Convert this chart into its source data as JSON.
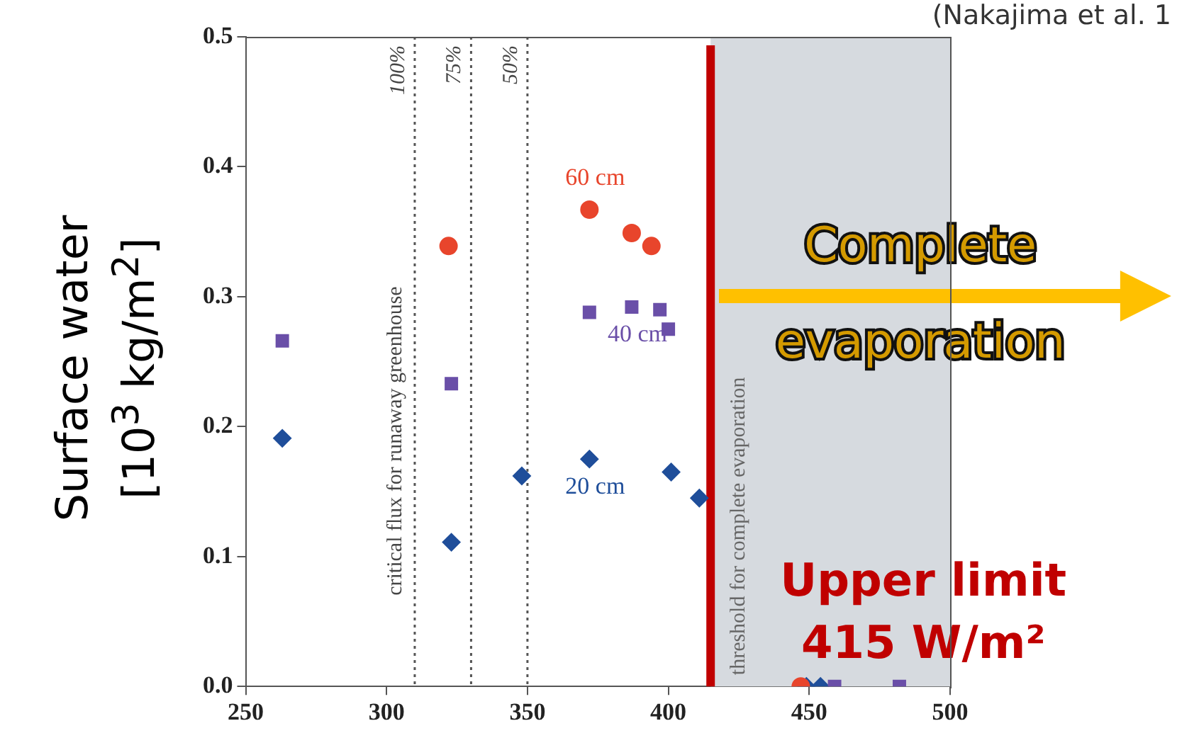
{
  "chart_data": {
    "type": "scatter",
    "ylabel": "Surface water [10$^{3}$ kg/m$^{2}$]",
    "xlim": [
      250,
      500
    ],
    "xticks": [
      250,
      300,
      350,
      400,
      450,
      500
    ],
    "ylim": [
      0,
      0.5
    ],
    "yticks": [
      {
        "value": 0,
        "label": "0.0"
      },
      0.1,
      0.2,
      0.3,
      0.4,
      0.5
    ],
    "grid": false,
    "legend": false,
    "series": [
      {
        "name": "60 cm",
        "color": "#e8452c",
        "marker": "circle",
        "x": [
          322,
          372,
          387,
          394,
          447
        ],
        "values": [
          0.339,
          0.367,
          0.349,
          0.339,
          0
        ]
      },
      {
        "name": "40 cm",
        "color": "#6a4fa8",
        "marker": "square",
        "x": [
          263,
          323,
          372,
          387,
          397,
          400,
          459,
          482
        ],
        "values": [
          0.266,
          0.233,
          0.288,
          0.292,
          0.29,
          0.275,
          0,
          0
        ]
      },
      {
        "name": "20 cm",
        "color": "#1f4e9a",
        "marker": "diamond",
        "x": [
          263,
          323,
          348,
          372,
          401,
          411,
          449,
          454
        ],
        "values": [
          0.191,
          0.111,
          0.162,
          0.175,
          0.165,
          0.145,
          0,
          0
        ]
      }
    ],
    "ref_lines": [
      {
        "axis": "x",
        "value": 310,
        "color": "#555555",
        "line_style": "dotted"
      },
      {
        "axis": "x",
        "value": 330,
        "color": "#555555",
        "line_style": "dotted"
      },
      {
        "axis": "x",
        "value": 350,
        "color": "#555555",
        "line_style": "dotted"
      },
      {
        "axis": "x",
        "value": 415,
        "label": "Upper limit 415 W/m²",
        "color": "#c00000",
        "line_style": "solid"
      }
    ],
    "bands": [
      {
        "axis": "x",
        "from": 415,
        "to": 500,
        "label": "threshold for complete evaporation",
        "color": "#d6dadf"
      }
    ],
    "annotations": [
      "critical flux for runaway greenhouse",
      {
        "text": "100%",
        "x": 310,
        "y": 0.5
      },
      {
        "text": "75%",
        "x": 330,
        "y": 0.5
      },
      {
        "text": "50%",
        "x": 350,
        "y": 0.5
      },
      {
        "text": "Complete evaporation",
        "x": 418,
        "y": 0.3
      },
      "(Nakajima et al. 1"
    ]
  }
}
